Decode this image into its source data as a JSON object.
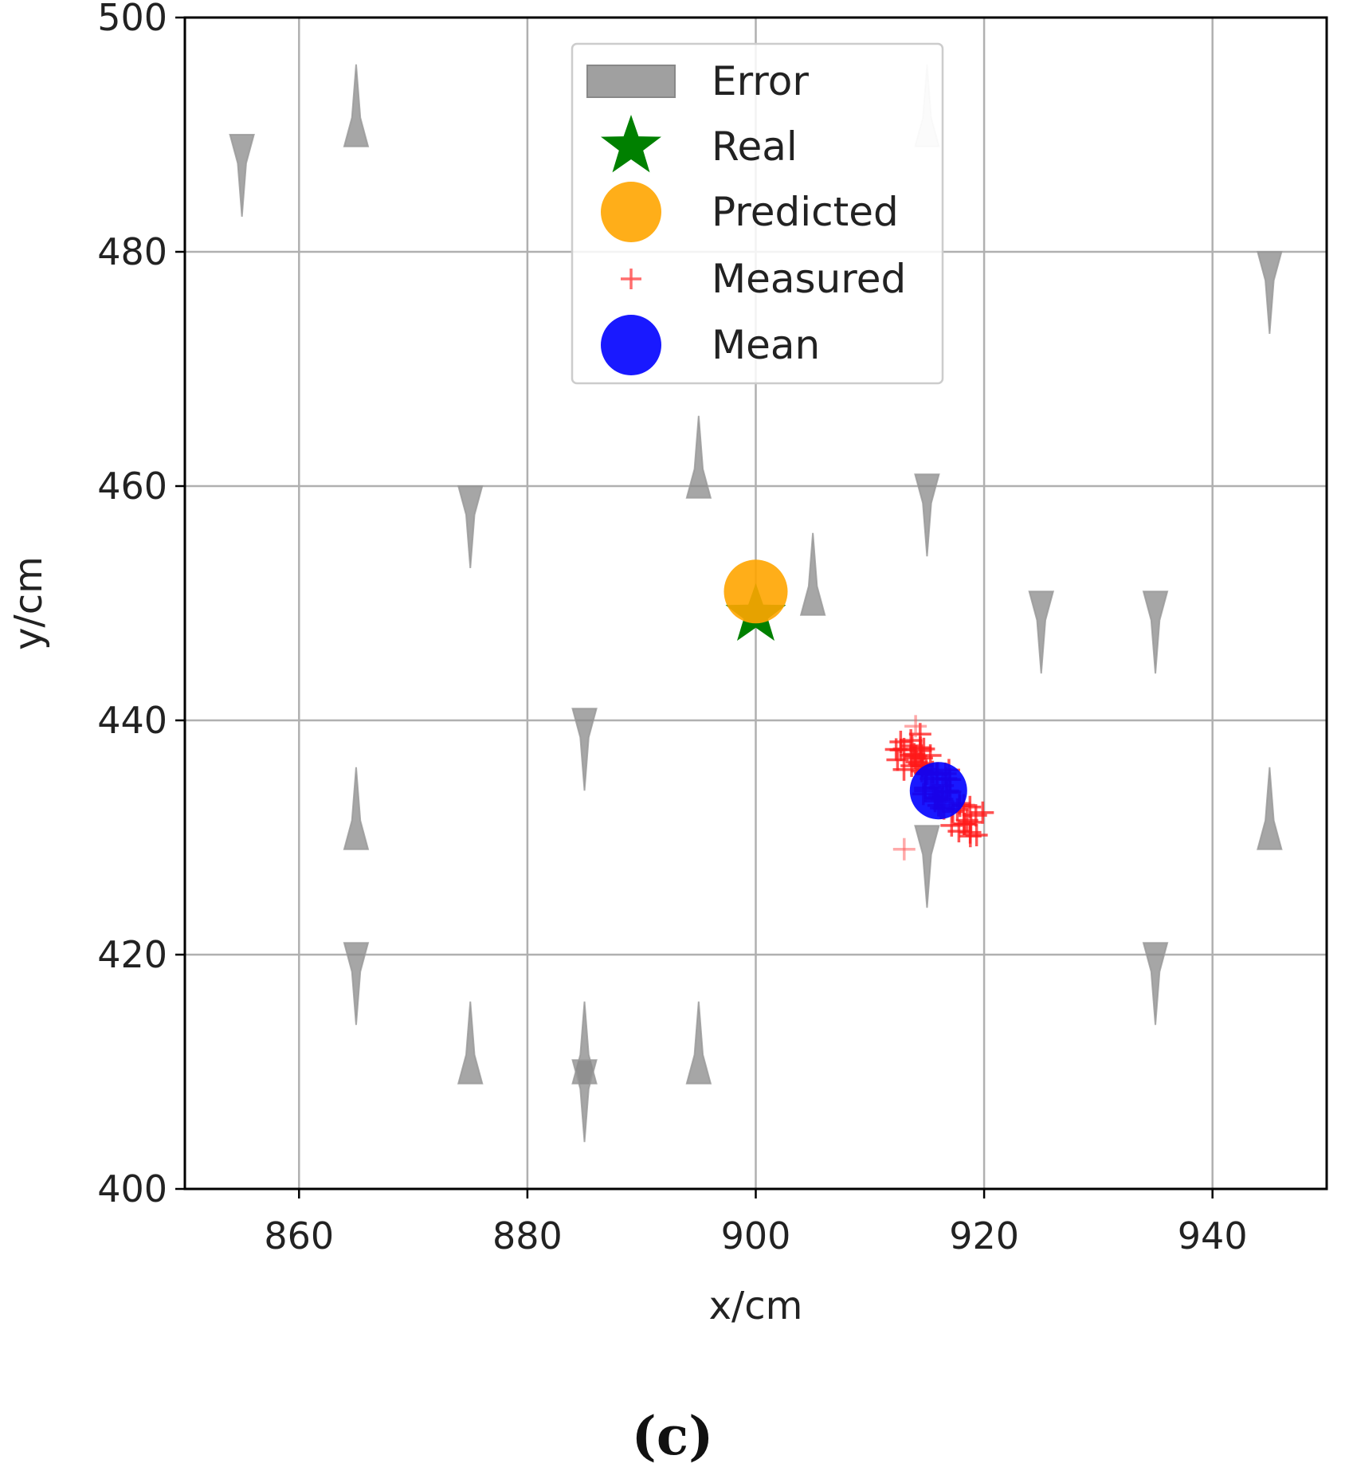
{
  "chart_data": {
    "type": "scatter",
    "xlabel": "x/cm",
    "ylabel": "y/cm",
    "xlim": [
      850,
      950
    ],
    "ylim": [
      400,
      500
    ],
    "x_ticks": [
      860,
      880,
      900,
      920,
      940
    ],
    "y_ticks": [
      400,
      420,
      440,
      460,
      480,
      500
    ],
    "grid": true,
    "legend_position": "top-center",
    "legend": [
      {
        "label": "Error",
        "marker": "arrow-patch",
        "color": "#999999"
      },
      {
        "label": "Real",
        "marker": "star",
        "color": "#008000"
      },
      {
        "label": "Predicted",
        "marker": "circle",
        "color": "#FFA500"
      },
      {
        "label": "Measured",
        "marker": "plus",
        "color": "#FF4444"
      },
      {
        "label": "Mean",
        "marker": "circle",
        "color": "#0000FF"
      }
    ],
    "real": {
      "x": 900,
      "y": 449
    },
    "predicted": {
      "x": 900,
      "y": 451
    },
    "mean": {
      "x": 916,
      "y": 434
    },
    "measured_cluster": {
      "x_range": [
        912,
        920
      ],
      "y_range": [
        429,
        440
      ]
    },
    "error_arrows": [
      {
        "x": 855,
        "y": 490,
        "dy": -7
      },
      {
        "x": 865,
        "y": 489,
        "dy": 7
      },
      {
        "x": 915,
        "y": 489,
        "dy": 7,
        "faded": true
      },
      {
        "x": 945,
        "y": 480,
        "dy": -7
      },
      {
        "x": 875,
        "y": 460,
        "dy": -7
      },
      {
        "x": 895,
        "y": 459,
        "dy": 7
      },
      {
        "x": 915,
        "y": 461,
        "dy": -7
      },
      {
        "x": 905,
        "y": 449,
        "dy": 7
      },
      {
        "x": 925,
        "y": 451,
        "dy": -7
      },
      {
        "x": 935,
        "y": 451,
        "dy": -7
      },
      {
        "x": 885,
        "y": 441,
        "dy": -7
      },
      {
        "x": 865,
        "y": 429,
        "dy": 7
      },
      {
        "x": 945,
        "y": 429,
        "dy": 7
      },
      {
        "x": 915,
        "y": 431,
        "dy": -7
      },
      {
        "x": 865,
        "y": 421,
        "dy": -7
      },
      {
        "x": 935,
        "y": 421,
        "dy": -7
      },
      {
        "x": 875,
        "y": 409,
        "dy": 7
      },
      {
        "x": 885,
        "y": 409,
        "dy": 7
      },
      {
        "x": 895,
        "y": 409,
        "dy": 7
      },
      {
        "x": 885,
        "y": 411,
        "dy": -7
      }
    ]
  },
  "caption": "(c)"
}
